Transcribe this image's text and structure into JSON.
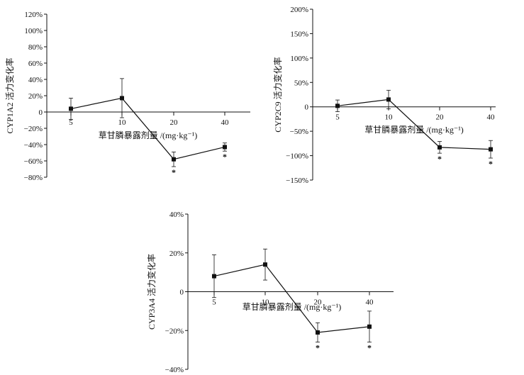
{
  "chart_data": [
    {
      "type": "line",
      "ylabel": "CYP1A2 活力变化率",
      "xlabel": "草甘膦暴露剂量 /(mg·kg⁻¹)",
      "categories": [
        "5",
        "10",
        "20",
        "40"
      ],
      "series": [
        {
          "values": [
            4,
            17,
            -58,
            -43
          ],
          "errors": [
            13,
            24,
            9,
            5
          ],
          "significant": [
            false,
            false,
            true,
            true
          ]
        }
      ],
      "ylim": [
        -80,
        120
      ],
      "yticks": [
        -80,
        -60,
        -40,
        -20,
        0,
        20,
        40,
        60,
        80,
        100,
        120
      ],
      "ytick_labels": [
        "−80%",
        "−60%",
        "−40%",
        "−20%",
        "0",
        "20%",
        "40%",
        "60%",
        "80%",
        "100%",
        "120%"
      ],
      "significance_marker": "*",
      "grid": false
    },
    {
      "type": "line",
      "ylabel": "CYP2C9 活力变化率",
      "xlabel": "草甘膦暴露剂量 /(mg·kg⁻¹)",
      "categories": [
        "5",
        "10",
        "20",
        "40"
      ],
      "series": [
        {
          "values": [
            2,
            15,
            -83,
            -87
          ],
          "errors": [
            12,
            19,
            12,
            18
          ],
          "significant": [
            false,
            false,
            true,
            true
          ]
        }
      ],
      "ylim": [
        -150,
        200
      ],
      "yticks": [
        -150,
        -100,
        -50,
        0,
        50,
        100,
        150,
        200
      ],
      "ytick_labels": [
        "−150%",
        "−100%",
        "−50%",
        "0",
        "50%",
        "100%",
        "150%",
        "200%"
      ],
      "significance_marker": "*",
      "grid": false
    },
    {
      "type": "line",
      "ylabel": "CYP3A4 活力变化率",
      "xlabel": "草甘膦暴露剂量 /(mg·kg⁻¹)",
      "categories": [
        "5",
        "10",
        "20",
        "40"
      ],
      "series": [
        {
          "values": [
            8,
            14,
            -21,
            -18
          ],
          "errors": [
            11,
            8,
            5,
            8
          ],
          "significant": [
            false,
            false,
            true,
            true
          ]
        }
      ],
      "ylim": [
        -40,
        40
      ],
      "yticks": [
        -40,
        -20,
        0,
        20,
        40
      ],
      "ytick_labels": [
        "−40%",
        "−20%",
        "0",
        "20%",
        "40%"
      ],
      "significance_marker": "*",
      "grid": false
    }
  ]
}
